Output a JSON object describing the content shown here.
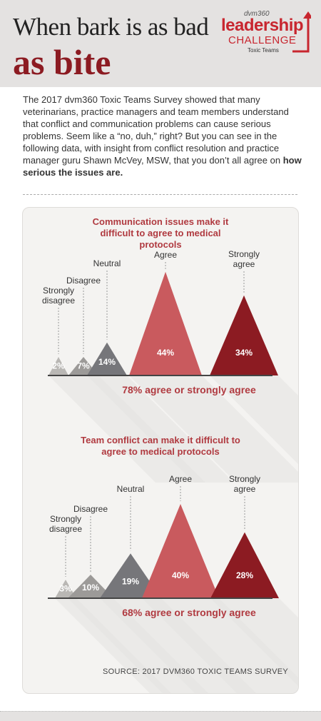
{
  "header": {
    "title_line1": "When bark is as bad",
    "title_line2": "as bite",
    "logo_brand": "dvm360",
    "logo_line1": "leadership",
    "logo_line2": "CHALLENGE",
    "logo_line3": "Toxic Teams"
  },
  "intro": {
    "text": "The 2017 dvm360 Toxic Teams Survey showed that many veterinarians, practice managers and team members understand that conflict and communication problems can cause serious problems. Seem like a “no, duh,” right? But you can see in the following data, with insight from conflict resolution and practice manager guru Shawn McVey, MSW, that you don’t all agree on ",
    "emphasis": "how serious the issues are."
  },
  "colors": {
    "strongly_disagree": "#b9b7b4",
    "disagree": "#9c9a98",
    "neutral": "#76767a",
    "agree": "#c95a5e",
    "strongly_agree": "#8c1b22",
    "title": "#b03a40"
  },
  "chart_data": [
    {
      "type": "bar",
      "title": "Communication issues make it difficult to agree to medical protocols",
      "categories": [
        "Strongly disagree",
        "Disagree",
        "Neutral",
        "Agree",
        "Strongly agree"
      ],
      "values": [
        2,
        7,
        14,
        44,
        34
      ],
      "value_labels": [
        "2%",
        "7%",
        "14%",
        "44%",
        "34%"
      ],
      "summary": "78% agree or strongly agree"
    },
    {
      "type": "bar",
      "title": "Team conflict can make it difficult to agree to medical protocols",
      "categories": [
        "Strongly disagree",
        "Disagree",
        "Neutral",
        "Agree",
        "Strongly agree"
      ],
      "values": [
        3,
        10,
        19,
        40,
        28
      ],
      "value_labels": [
        "3%",
        "10%",
        "19%",
        "40%",
        "28%"
      ],
      "summary": "68% agree or strongly agree"
    }
  ],
  "source": "SOURCE: 2017 DVM360 TOXIC TEAMS SURVEY"
}
